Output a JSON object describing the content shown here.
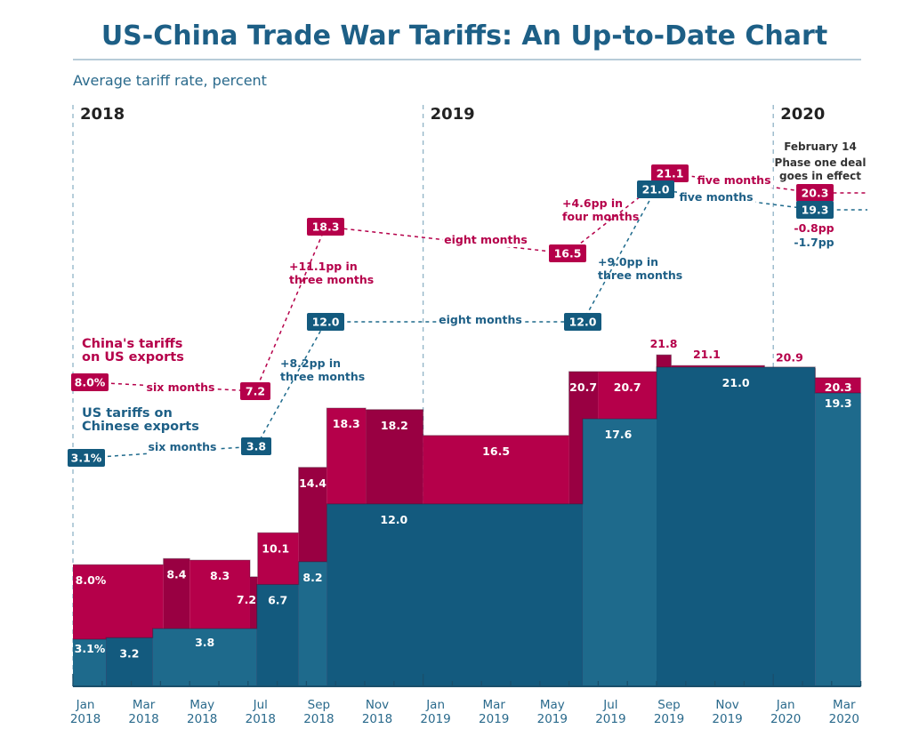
{
  "chart_data": {
    "type": "step-area",
    "title": "US-China Trade War Tariffs: An Up-to-Date Chart",
    "ylabel": "Average tariff rate, percent",
    "years": [
      "2018",
      "2019",
      "2020"
    ],
    "x_ticks": [
      [
        "Jan",
        "2018"
      ],
      [
        "Mar",
        "2018"
      ],
      [
        "May",
        "2018"
      ],
      [
        "Jul",
        "2018"
      ],
      [
        "Sep",
        "2018"
      ],
      [
        "Nov",
        "2018"
      ],
      [
        "Jan",
        "2019"
      ],
      [
        "Mar",
        "2019"
      ],
      [
        "May",
        "2019"
      ],
      [
        "Jul",
        "2019"
      ],
      [
        "Sep",
        "2019"
      ],
      [
        "Nov",
        "2019"
      ],
      [
        "Jan",
        "2020"
      ],
      [
        "Mar",
        "2020"
      ]
    ],
    "x_range": [
      "2018-01-01",
      "2020-04-01"
    ],
    "ylim": [
      0,
      25
    ],
    "colors": {
      "china": "#b5004a",
      "china_dark": "#990042",
      "us": "#1e6a8c",
      "us_dark": "#135a7e"
    },
    "series": [
      {
        "name": "China's tariffs on US exports",
        "steps": [
          {
            "start": "2018-01-01",
            "value": 8.0,
            "label": "8.0%"
          },
          {
            "start": "2018-04-04",
            "value": 8.4,
            "label": "8.4"
          },
          {
            "start": "2018-05-01",
            "value": 8.3,
            "label": "8.3"
          },
          {
            "start": "2018-07-03",
            "value": 7.2,
            "label": "7.2"
          },
          {
            "start": "2018-07-11",
            "value": 10.1,
            "label": "10.1"
          },
          {
            "start": "2018-08-23",
            "value": 14.4,
            "label": "14.4"
          },
          {
            "start": "2018-09-22",
            "value": 18.3,
            "label": "18.3"
          },
          {
            "start": "2018-11-02",
            "value": 18.2,
            "label": "18.2"
          },
          {
            "start": "2019-01-01",
            "value": 16.5,
            "label": "16.5"
          },
          {
            "start": "2019-06-01",
            "value": 20.7,
            "label": "20.7"
          },
          {
            "start": "2019-07-01",
            "value": 20.7,
            "label": "20.7"
          },
          {
            "start": "2019-09-01",
            "value": 21.8,
            "label": "21.8"
          },
          {
            "start": "2019-09-16",
            "value": 21.1,
            "label": "21.1"
          },
          {
            "start": "2019-12-22",
            "value": 20.9,
            "label": "20.9"
          },
          {
            "start": "2020-02-14",
            "value": 20.3,
            "label": "20.3"
          }
        ]
      },
      {
        "name": "US tariffs on Chinese exports",
        "steps": [
          {
            "start": "2018-01-01",
            "value": 3.1,
            "label": "3.1%"
          },
          {
            "start": "2018-02-05",
            "value": 3.2,
            "label": "3.2"
          },
          {
            "start": "2018-03-23",
            "value": 3.8,
            "label": "3.8"
          },
          {
            "start": "2018-07-10",
            "value": 6.7,
            "label": "6.7"
          },
          {
            "start": "2018-08-23",
            "value": 8.2,
            "label": "8.2"
          },
          {
            "start": "2018-09-22",
            "value": 12.0,
            "label": "12.0"
          },
          {
            "start": "2019-06-15",
            "value": 17.6,
            "label": "17.6"
          },
          {
            "start": "2019-09-01",
            "value": 21.0,
            "label": "21.0"
          },
          {
            "start": "2020-02-14",
            "value": 19.3,
            "label": "19.3"
          }
        ]
      }
    ],
    "annotations": {
      "legend_china": [
        "China's tariffs",
        "on US exports"
      ],
      "legend_us": [
        "US tariffs on",
        "Chinese exports"
      ],
      "china_boxes": [
        "8.0%",
        "7.2",
        "18.3",
        "16.5",
        "21.1",
        "20.3"
      ],
      "us_boxes": [
        "3.1%",
        "3.8",
        "12.0",
        "12.0",
        "21.0",
        "19.3"
      ],
      "china_notes": [
        [
          "six months"
        ],
        [
          "+11.1pp in",
          "three months"
        ],
        [
          "eight months"
        ],
        [
          "+4.6pp in",
          "four months"
        ],
        [
          "five months"
        ],
        [
          "-0.8pp"
        ]
      ],
      "us_notes": [
        [
          "six months"
        ],
        [
          "+8.2pp in",
          "three months"
        ],
        [
          "eight months"
        ],
        [
          "+9.0pp in",
          "three months"
        ],
        [
          "five months"
        ],
        [
          "-1.7pp"
        ]
      ],
      "event_date": "February 14",
      "event_text": [
        "Phase one deal",
        "goes in effect"
      ]
    }
  }
}
